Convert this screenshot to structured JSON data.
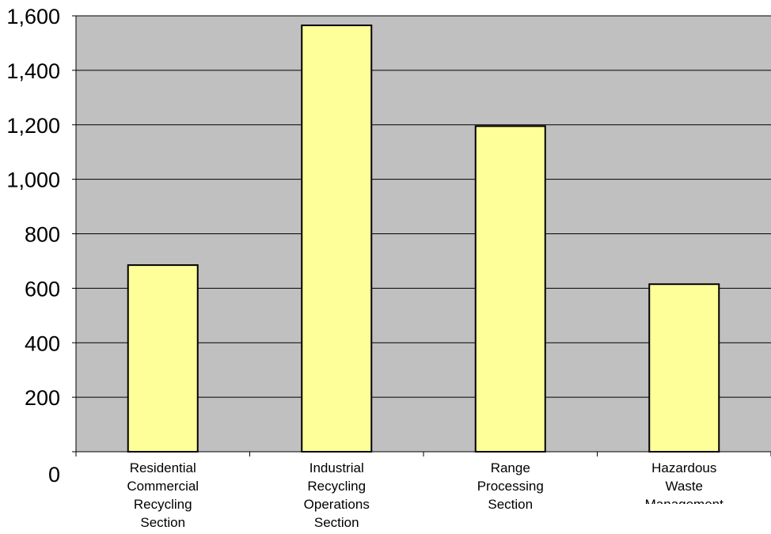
{
  "chart_data": {
    "type": "bar",
    "categories": [
      [
        "Residential",
        "Commercial",
        "Recycling",
        "Section"
      ],
      [
        "Industrial",
        "Recycling",
        "Operations",
        "Section"
      ],
      [
        "Range",
        "Processing",
        "Section"
      ],
      [
        "Hazardous",
        "Waste",
        "Management"
      ]
    ],
    "values": [
      685,
      1565,
      1195,
      615
    ],
    "ylim": [
      0,
      1600
    ],
    "yticks": [
      0,
      200,
      400,
      600,
      800,
      1000,
      1200,
      1400,
      1600
    ],
    "ytick_labels": [
      "0",
      "200",
      "400",
      "600",
      "800",
      "1,000",
      "1,200",
      "1,400",
      "1,600"
    ],
    "grid": true,
    "legend": "none",
    "title": "",
    "xlabel": "",
    "ylabel": "",
    "colors": {
      "plot_background": "#c0c0c0",
      "bar_fill": "#ffff99",
      "bar_stroke": "#000000",
      "grid": "#000000"
    }
  }
}
